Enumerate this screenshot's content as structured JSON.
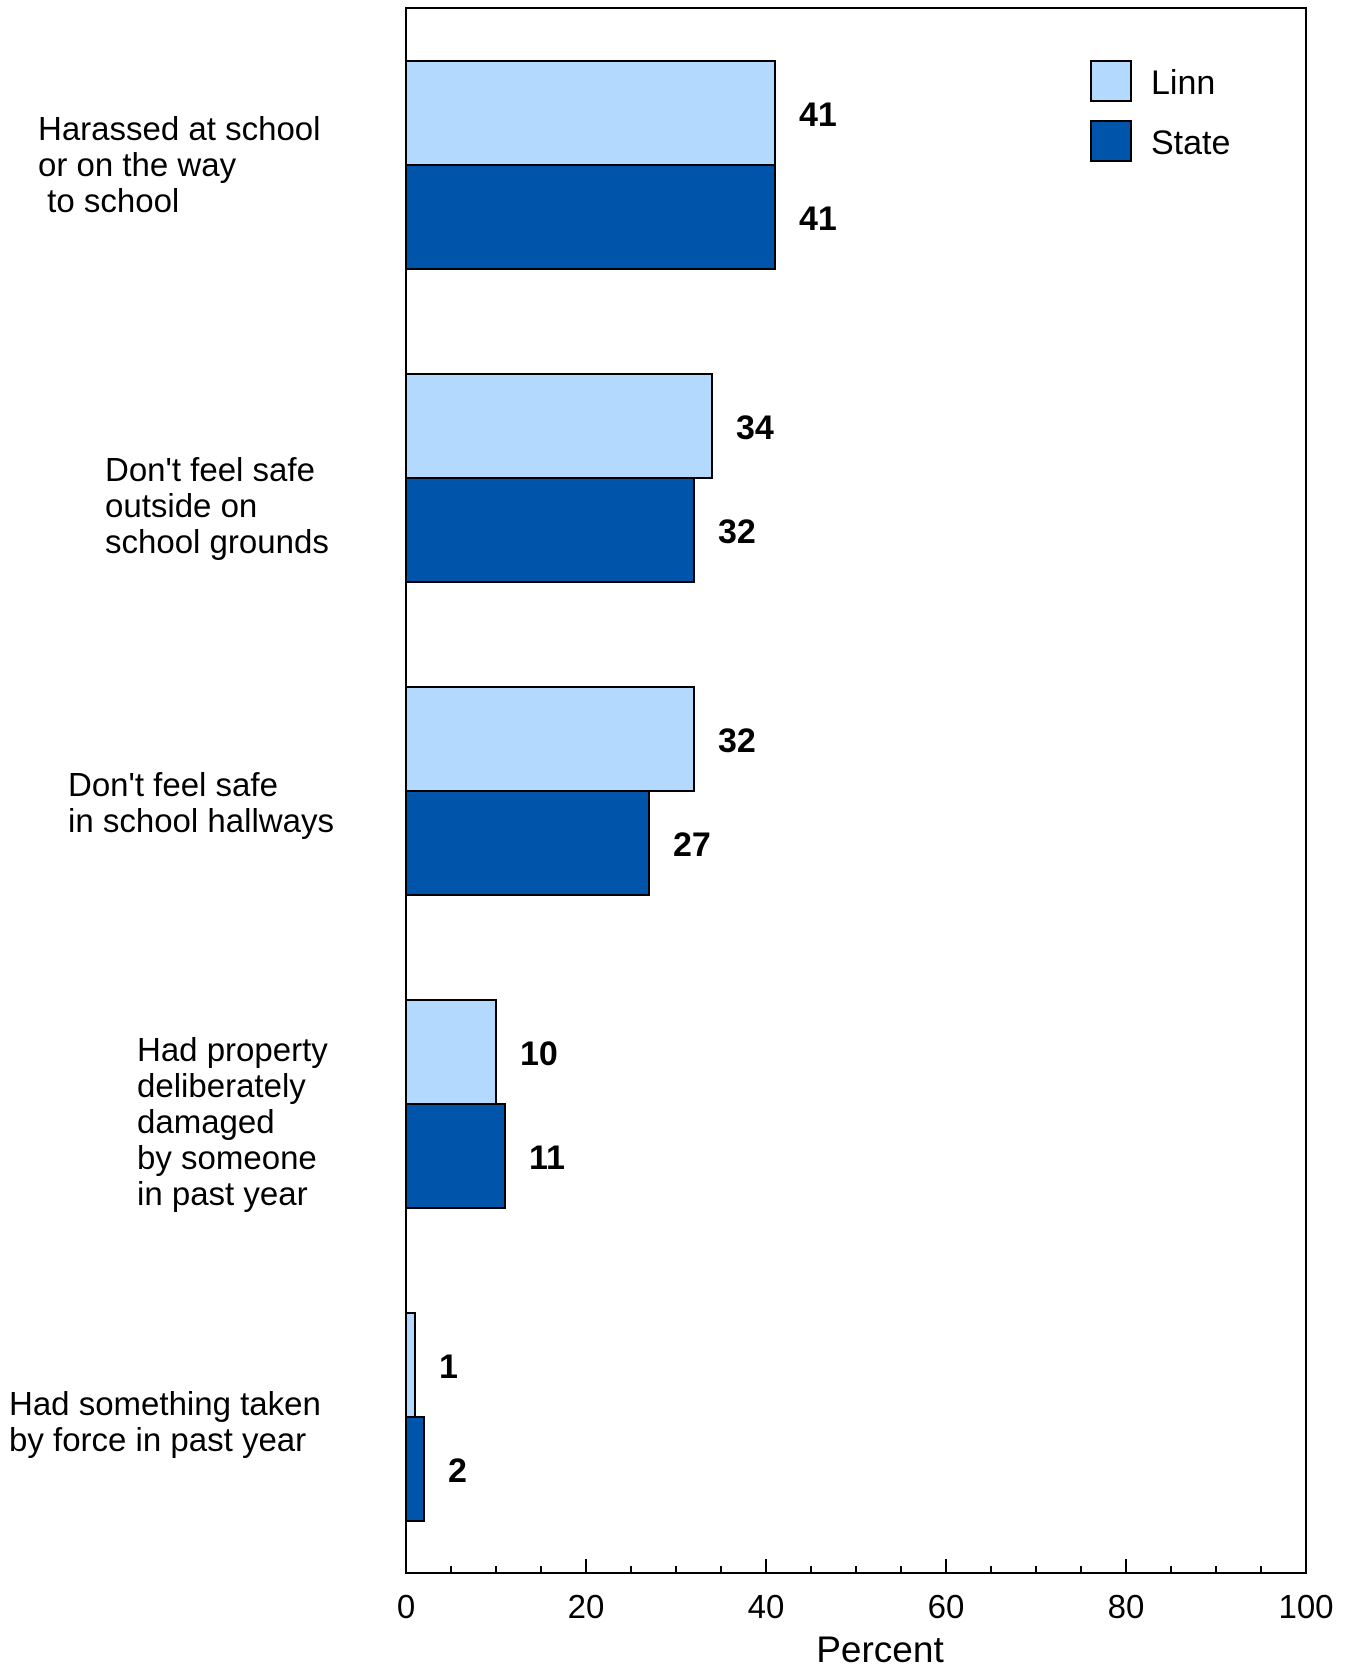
{
  "chart_data": {
    "type": "bar",
    "orientation": "horizontal",
    "categories": [
      "Harassed at school\nor on the way\n to school",
      "Don't feel safe\noutside on\nschool grounds",
      "Don't feel safe\nin school hallways",
      "Had property\ndeliberately\ndamaged\nby someone\nin past year",
      "Had something taken\nby force in past year"
    ],
    "series": [
      {
        "name": "Linn",
        "color": "#b3d9ff",
        "values": [
          41,
          34,
          32,
          10,
          1
        ]
      },
      {
        "name": "State",
        "color": "#0055aa",
        "values": [
          41,
          32,
          27,
          11,
          2
        ]
      }
    ],
    "xlabel": "Percent",
    "xlim": [
      0,
      100
    ],
    "xticks": [
      "0",
      "20",
      "40",
      "60",
      "80",
      "100"
    ],
    "legend_position": "top-right",
    "grid": false
  }
}
